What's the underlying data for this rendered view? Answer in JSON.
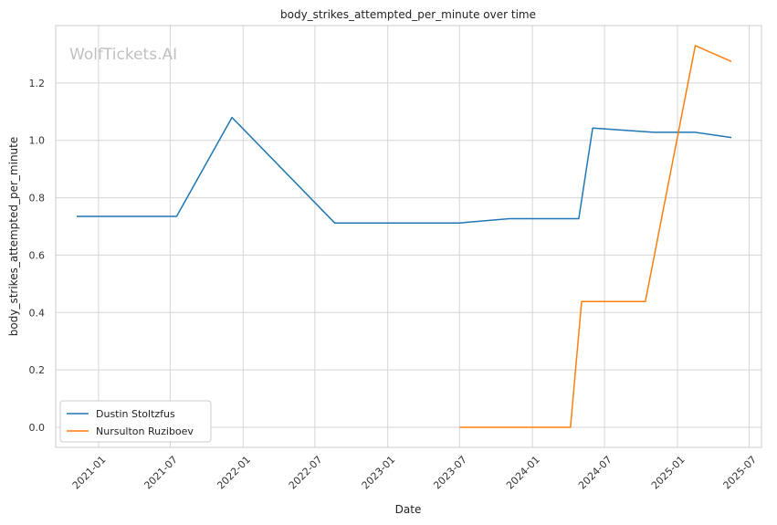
{
  "chart_data": {
    "type": "line",
    "title": "body_strikes_attempted_per_minute over time",
    "xlabel": "Date",
    "ylabel": "body_strikes_attempted_per_minute",
    "watermark": "WolfTickets.AI",
    "x_range": [
      "2020-09-15",
      "2025-08-01"
    ],
    "ylim": [
      -0.07,
      1.4
    ],
    "x_ticks": [
      "2021-01",
      "2021-07",
      "2022-01",
      "2022-07",
      "2023-01",
      "2023-07",
      "2024-01",
      "2024-07",
      "2025-01",
      "2025-07"
    ],
    "y_ticks": [
      "0.0",
      "0.2",
      "0.4",
      "0.6",
      "0.8",
      "1.0",
      "1.2"
    ],
    "grid": true,
    "legend_position": "bottom-left",
    "series": [
      {
        "name": "Dustin Stoltzfus",
        "color": "#1f77b4",
        "x": [
          "2020-11-07",
          "2021-07-17",
          "2021-12-04",
          "2022-08-20",
          "2023-07-01",
          "2023-11-04",
          "2024-04-27",
          "2024-06-01",
          "2024-11-02",
          "2025-02-15",
          "2025-05-17"
        ],
        "y": [
          0.735,
          0.735,
          1.08,
          0.712,
          0.712,
          0.727,
          0.727,
          1.043,
          1.028,
          1.028,
          1.01
        ]
      },
      {
        "name": "Nursulton Ruziboev",
        "color": "#ff7f0e",
        "x": [
          "2023-07-01",
          "2024-04-06",
          "2024-05-04",
          "2024-10-12",
          "2025-02-15",
          "2025-05-17"
        ],
        "y": [
          0.0,
          0.0,
          0.438,
          0.438,
          1.33,
          1.275
        ]
      }
    ]
  }
}
